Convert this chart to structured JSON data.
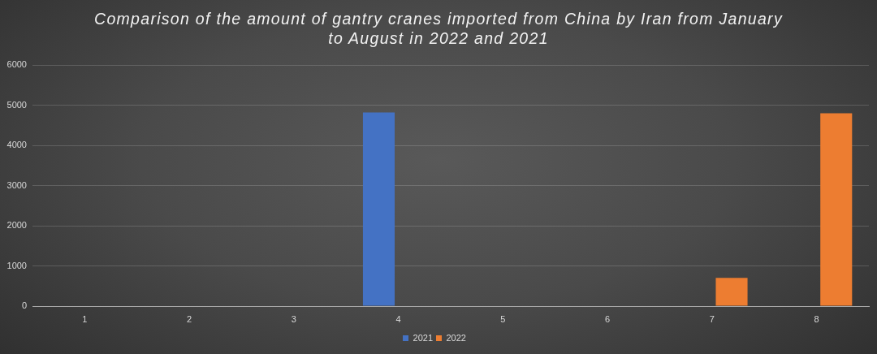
{
  "chart_data": {
    "type": "bar",
    "title": "Comparison of the amount of gantry cranes imported from China by Iran from January to August in 2022 and 2021",
    "categories": [
      "1",
      "2",
      "3",
      "4",
      "5",
      "6",
      "7",
      "8"
    ],
    "series": [
      {
        "name": "2021",
        "color": "#4472c4",
        "values": [
          0,
          0,
          0,
          4820,
          0,
          0,
          0,
          0
        ]
      },
      {
        "name": "2022",
        "color": "#ed7d31",
        "values": [
          0,
          0,
          0,
          0,
          0,
          0,
          700,
          4800
        ]
      }
    ],
    "ylim": [
      0,
      6000
    ],
    "yticks": [
      0,
      1000,
      2000,
      3000,
      4000,
      5000,
      6000
    ],
    "grid": "y",
    "legend": "bottom"
  }
}
